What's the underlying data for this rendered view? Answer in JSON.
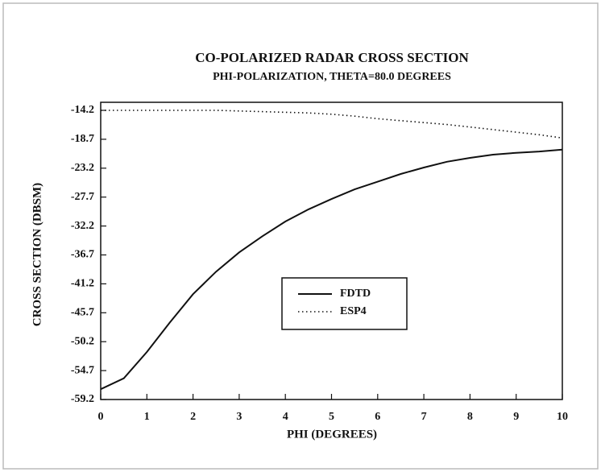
{
  "chart_data": {
    "type": "line",
    "title": "CO-POLARIZED RADAR CROSS SECTION",
    "subtitle": "PHI-POLARIZATION, THETA=80.0 DEGREES",
    "x_label": "PHI (DEGREES)",
    "y_label": "CROSS SECTION (DBSM)",
    "x": [
      0,
      0.5,
      1,
      1.5,
      2,
      2.5,
      3,
      3.5,
      4,
      4.5,
      5,
      5.5,
      6,
      6.5,
      7,
      7.5,
      8,
      8.5,
      9,
      9.5,
      10
    ],
    "series": [
      {
        "name": "FDTD",
        "color": "#111111",
        "dash": "solid",
        "values": [
          -57.6,
          -55.9,
          -51.8,
          -47.2,
          -42.8,
          -39.3,
          -36.3,
          -33.8,
          -31.5,
          -29.6,
          -28.0,
          -26.5,
          -25.3,
          -24.1,
          -23.1,
          -22.2,
          -21.6,
          -21.1,
          -20.8,
          -20.6,
          -20.3
        ]
      },
      {
        "name": "ESP4",
        "color": "#111111",
        "dash": "dotted",
        "values": [
          -14.2,
          -14.2,
          -14.2,
          -14.2,
          -14.2,
          -14.2,
          -14.3,
          -14.4,
          -14.5,
          -14.6,
          -14.8,
          -15.1,
          -15.5,
          -15.8,
          -16.1,
          -16.4,
          -16.8,
          -17.2,
          -17.6,
          -18.0,
          -18.5
        ]
      }
    ],
    "xlim": [
      0,
      10
    ],
    "xticks": [
      0,
      1,
      2,
      3,
      4,
      5,
      6,
      7,
      8,
      9,
      10
    ],
    "ylim": [
      -59.2,
      -14.2
    ],
    "yticks": [
      -59.2,
      -54.7,
      -50.2,
      -45.7,
      -41.2,
      -36.7,
      -32.2,
      -27.7,
      -23.2,
      -18.7,
      -14.2
    ],
    "legend": "center"
  }
}
